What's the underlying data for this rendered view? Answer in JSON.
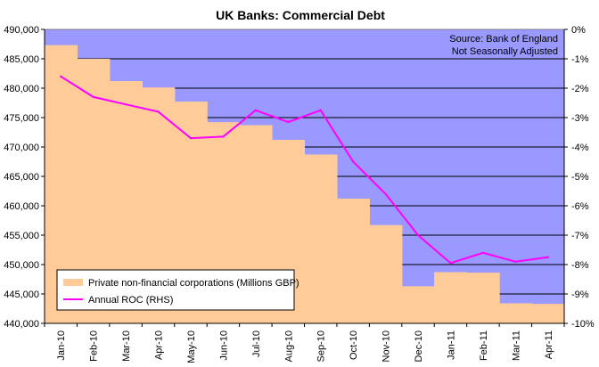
{
  "chart_data": {
    "type": "area",
    "title": "UK Banks: Commercial Debt",
    "annotations": [
      "Source: Bank of England",
      "Not Seasonally Adjusted"
    ],
    "categories": [
      "Jan-10",
      "Feb-10",
      "Mar-10",
      "Apr-10",
      "May-10",
      "Jun-10",
      "Jul-10",
      "Aug-10",
      "Sep-10",
      "Oct-10",
      "Nov-10",
      "Dec-10",
      "Jan-11",
      "Feb-11",
      "Mar-11",
      "Apr-11"
    ],
    "series": [
      {
        "name": "Private non-financial corporations (Millions GBP)",
        "kind": "step-area",
        "axis": "left",
        "color": "#FFCC99",
        "values": [
          487300,
          485000,
          481200,
          480100,
          477700,
          474200,
          473700,
          471200,
          468700,
          461200,
          456700,
          446300,
          448700,
          448600,
          443400,
          443300
        ]
      },
      {
        "name": "Annual ROC (RHS)",
        "kind": "line",
        "axis": "right",
        "color": "#FF00FF",
        "values": [
          -1.6,
          -2.3,
          -2.55,
          -2.8,
          -3.7,
          -3.65,
          -2.75,
          -3.15,
          -2.75,
          -4.5,
          -5.6,
          -7.0,
          -7.95,
          -7.6,
          -7.9,
          -7.75
        ]
      }
    ],
    "y_left": {
      "min": 440000,
      "max": 490000,
      "step": 5000,
      "ticks": [
        "440,000",
        "445,000",
        "450,000",
        "455,000",
        "460,000",
        "465,000",
        "470,000",
        "475,000",
        "480,000",
        "485,000",
        "490,000"
      ]
    },
    "y_right": {
      "min": -10,
      "max": 0,
      "step": 1,
      "ticks": [
        "-10%",
        "-9%",
        "-8%",
        "-7%",
        "-6%",
        "-5%",
        "-4%",
        "-3%",
        "-2%",
        "-1%",
        "0%"
      ]
    },
    "grid": true,
    "legend_position": "bottom-left",
    "colors": {
      "plot_background": "#9999FF",
      "grid": "#000000"
    }
  }
}
